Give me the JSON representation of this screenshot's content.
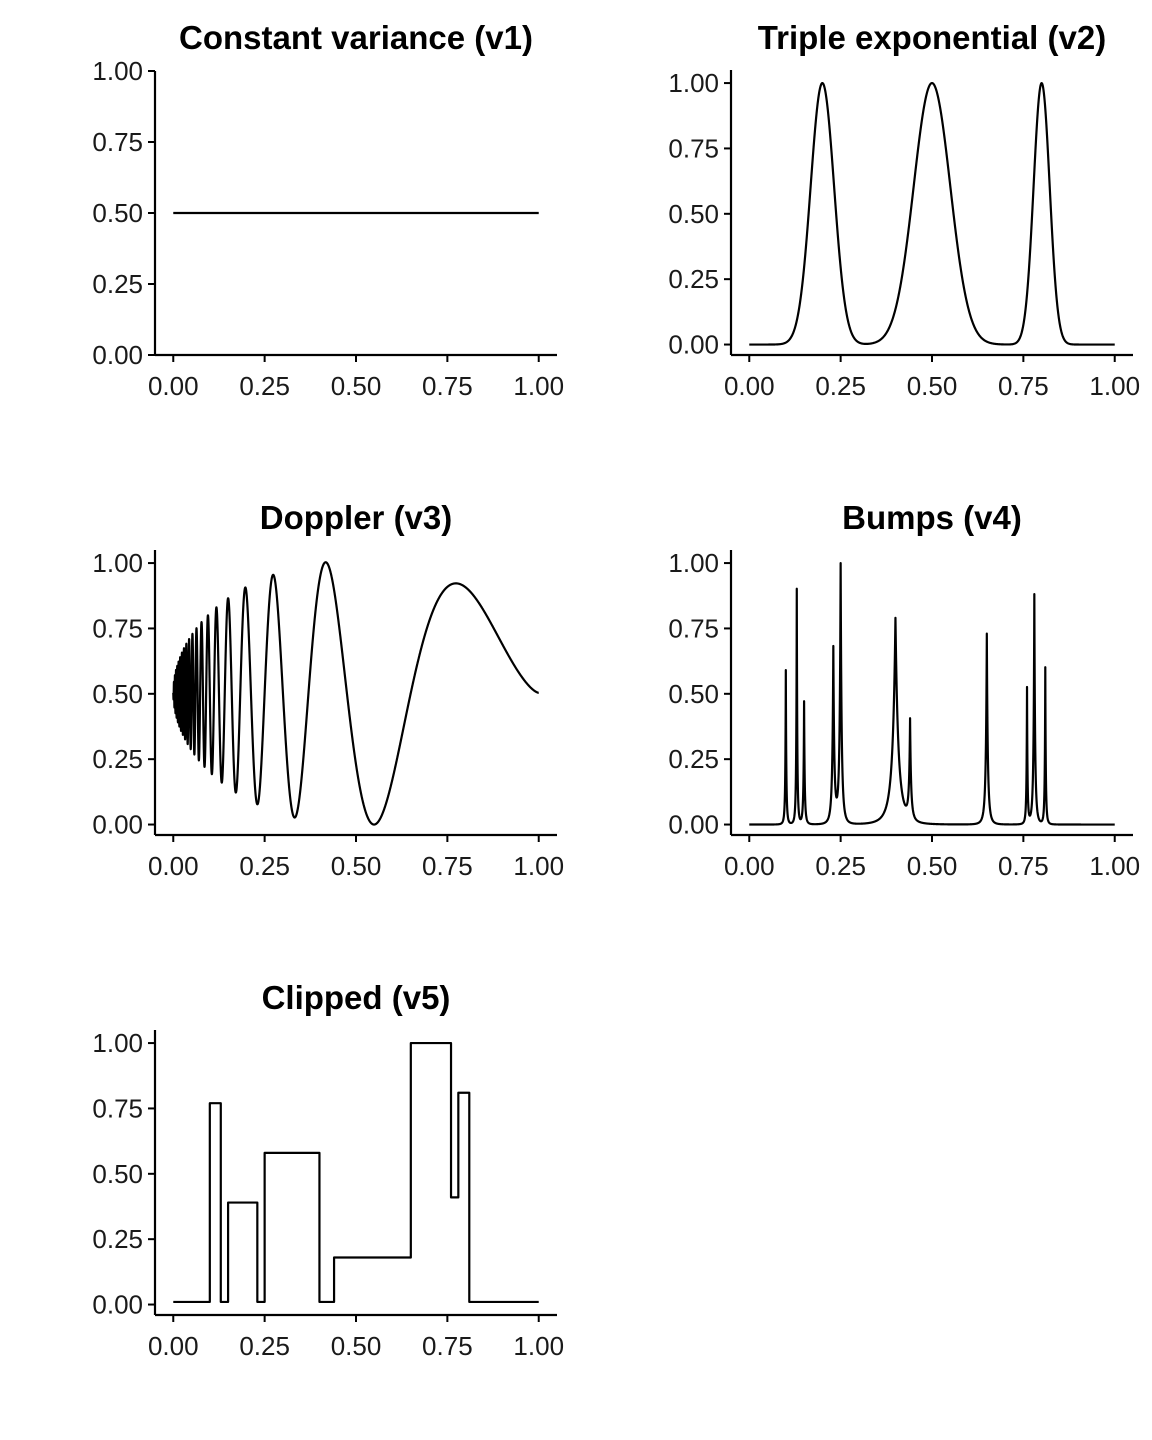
{
  "chart_data": [
    {
      "type": "line",
      "title": "Constant variance (v1)",
      "xlim": [
        -0.05,
        1.05
      ],
      "ylim": [
        0,
        1
      ],
      "xticks": [
        "0.00",
        "0.25",
        "0.50",
        "0.75",
        "1.00"
      ],
      "yticks": [
        "0.00",
        "0.25",
        "0.50",
        "0.75",
        "1.00"
      ],
      "kind": "constant",
      "x": [
        0,
        1
      ],
      "y": [
        0.5,
        0.5
      ]
    },
    {
      "type": "line",
      "title": "Triple exponential (v2)",
      "xlim": [
        -0.05,
        1.05
      ],
      "ylim": [
        -0.04,
        1.05
      ],
      "xticks": [
        "0.00",
        "0.25",
        "0.50",
        "0.75",
        "1.00"
      ],
      "yticks": [
        "0.00",
        "0.25",
        "0.50",
        "0.75",
        "1.00"
      ],
      "kind": "gaussian_peaks",
      "peaks": [
        {
          "x": 0.2,
          "y": 1.0
        },
        {
          "x": 0.5,
          "y": 1.0
        },
        {
          "x": 0.8,
          "y": 1.0
        }
      ]
    },
    {
      "type": "line",
      "title": "Doppler (v3)",
      "xlim": [
        -0.05,
        1.05
      ],
      "ylim": [
        -0.04,
        1.05
      ],
      "xticks": [
        "0.00",
        "0.25",
        "0.50",
        "0.75",
        "1.00"
      ],
      "yticks": [
        "0.00",
        "0.25",
        "0.50",
        "0.75",
        "1.00"
      ],
      "kind": "doppler",
      "extrema": [
        {
          "x": 0.2,
          "y": 0.9
        },
        {
          "x": 0.23,
          "y": 0.12
        },
        {
          "x": 0.27,
          "y": 0.95
        },
        {
          "x": 0.33,
          "y": 0.03
        },
        {
          "x": 0.42,
          "y": 1.0
        },
        {
          "x": 0.55,
          "y": 0.0
        },
        {
          "x": 0.78,
          "y": 0.92
        },
        {
          "x": 1.0,
          "y": 0.5
        }
      ]
    },
    {
      "type": "line",
      "title": "Bumps (v4)",
      "xlim": [
        -0.05,
        1.05
      ],
      "ylim": [
        -0.04,
        1.05
      ],
      "xticks": [
        "0.00",
        "0.25",
        "0.50",
        "0.75",
        "1.00"
      ],
      "yticks": [
        "0.00",
        "0.25",
        "0.50",
        "0.75",
        "1.00"
      ],
      "kind": "bumps",
      "peaks": [
        {
          "x": 0.1,
          "y": 0.59
        },
        {
          "x": 0.13,
          "y": 0.9
        },
        {
          "x": 0.15,
          "y": 0.47
        },
        {
          "x": 0.23,
          "y": 0.67
        },
        {
          "x": 0.25,
          "y": 1.0
        },
        {
          "x": 0.4,
          "y": 0.79
        },
        {
          "x": 0.44,
          "y": 0.38
        },
        {
          "x": 0.65,
          "y": 0.73
        },
        {
          "x": 0.76,
          "y": 0.52
        },
        {
          "x": 0.78,
          "y": 0.88
        },
        {
          "x": 0.81,
          "y": 0.6
        }
      ]
    },
    {
      "type": "line",
      "title": "Clipped (v5)",
      "xlim": [
        -0.05,
        1.05
      ],
      "ylim": [
        -0.04,
        1.05
      ],
      "xticks": [
        "0.00",
        "0.25",
        "0.50",
        "0.75",
        "1.00"
      ],
      "yticks": [
        "0.00",
        "0.25",
        "0.50",
        "0.75",
        "1.00"
      ],
      "kind": "steps",
      "steps": [
        {
          "from": 0.0,
          "to": 0.1,
          "y": 0.01
        },
        {
          "from": 0.1,
          "to": 0.13,
          "y": 0.77
        },
        {
          "from": 0.13,
          "to": 0.15,
          "y": 0.01
        },
        {
          "from": 0.15,
          "to": 0.23,
          "y": 0.39
        },
        {
          "from": 0.23,
          "to": 0.25,
          "y": 0.01
        },
        {
          "from": 0.25,
          "to": 0.4,
          "y": 0.58
        },
        {
          "from": 0.4,
          "to": 0.44,
          "y": 0.01
        },
        {
          "from": 0.44,
          "to": 0.65,
          "y": 0.18
        },
        {
          "from": 0.65,
          "to": 0.76,
          "y": 1.0
        },
        {
          "from": 0.76,
          "to": 0.78,
          "y": 0.41
        },
        {
          "from": 0.78,
          "to": 0.81,
          "y": 0.81
        },
        {
          "from": 0.81,
          "to": 1.0,
          "y": 0.01
        }
      ]
    }
  ]
}
